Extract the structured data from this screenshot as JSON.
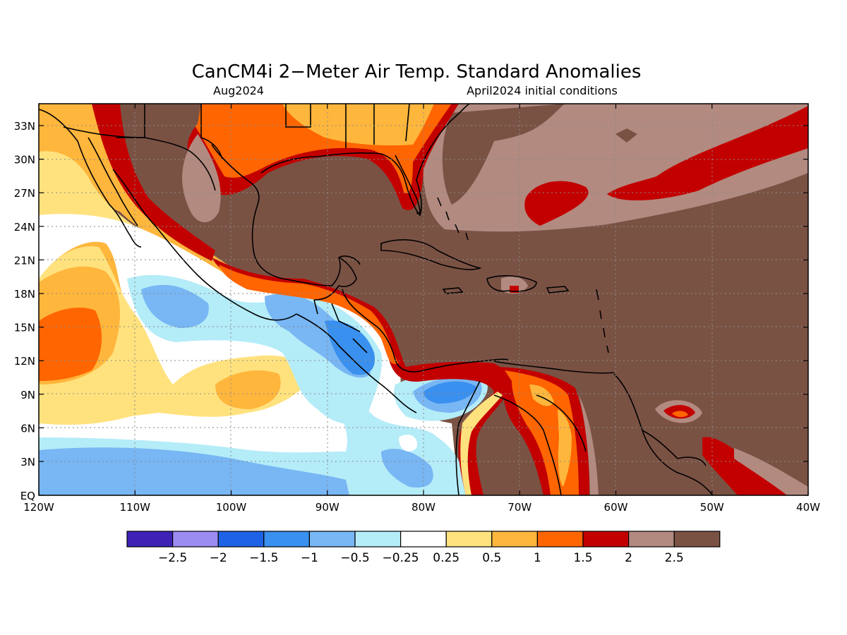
{
  "title": "CanCM4i 2−Meter Air Temp. Standard Anomalies",
  "subtitle_left": "Aug2024",
  "subtitle_right": "April2024 initial conditions",
  "lat_labels": [
    "33N",
    "30N",
    "27N",
    "24N",
    "21N",
    "18N",
    "15N",
    "12N",
    "9N",
    "6N",
    "3N",
    "EQ"
  ],
  "lon_labels": [
    "120W",
    "110W",
    "100W",
    "90W",
    "80W",
    "70W",
    "60W",
    "50W",
    "40W"
  ],
  "legend": {
    "colors": [
      "#3d22b5",
      "#9b8cf2",
      "#1e62e6",
      "#3a90ee",
      "#78b6f4",
      "#b4ecf8",
      "#ffffff",
      "#ffe27e",
      "#ffb63c",
      "#ff6500",
      "#c30000",
      "#b28a80",
      "#7a5244"
    ],
    "labels": [
      "−2.5",
      "−2",
      "−1.5",
      "−1",
      "−0.5",
      "−0.25",
      "0.25",
      "0.5",
      "1",
      "1.5",
      "2",
      "2.5"
    ]
  }
}
